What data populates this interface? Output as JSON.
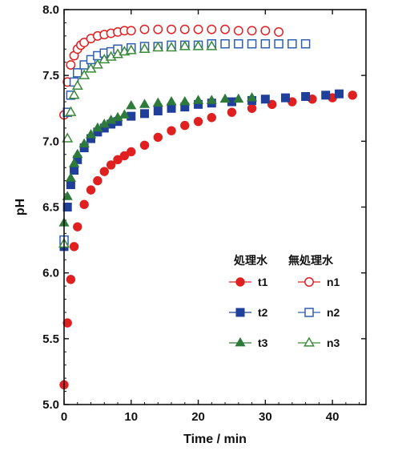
{
  "chart_data": {
    "type": "scatter",
    "title": "",
    "xlabel": "Time / min",
    "ylabel": "pH",
    "xlim": [
      0,
      45
    ],
    "ylim": [
      5.0,
      8.0
    ],
    "x_ticks": [
      "0",
      "10",
      "20",
      "30",
      "40"
    ],
    "y_ticks": [
      "5.0",
      "5.5",
      "6.0",
      "6.5",
      "7.0",
      "7.5",
      "8.0"
    ],
    "grid": false,
    "legend": {
      "placement": "bottom-right",
      "group_headers": [
        "処理水",
        "無処理水"
      ]
    },
    "series": [
      {
        "name": "t1",
        "color": "#e02020",
        "marker": "circle-filled",
        "x": [
          0,
          0.5,
          1,
          1.5,
          2,
          3,
          4,
          5,
          6,
          7,
          8,
          9,
          10,
          12,
          14,
          16,
          18,
          20,
          22,
          25,
          28,
          31,
          34,
          37,
          40,
          43
        ],
        "y": [
          5.15,
          5.62,
          5.95,
          6.2,
          6.35,
          6.52,
          6.63,
          6.7,
          6.77,
          6.82,
          6.86,
          6.89,
          6.92,
          6.97,
          7.03,
          7.08,
          7.12,
          7.15,
          7.18,
          7.22,
          7.25,
          7.28,
          7.3,
          7.32,
          7.33,
          7.35
        ]
      },
      {
        "name": "t2",
        "color": "#1f3f9a",
        "marker": "square-filled",
        "x": [
          0,
          0.5,
          1,
          1.5,
          2,
          3,
          4,
          5,
          6,
          7,
          8,
          10,
          12,
          14,
          16,
          18,
          20,
          22,
          25,
          28,
          30,
          33,
          36,
          39,
          41
        ],
        "y": [
          6.2,
          6.5,
          6.67,
          6.78,
          6.86,
          6.95,
          7.02,
          7.07,
          7.1,
          7.13,
          7.15,
          7.19,
          7.21,
          7.23,
          7.25,
          7.26,
          7.28,
          7.29,
          7.3,
          7.31,
          7.32,
          7.33,
          7.34,
          7.35,
          7.36
        ]
      },
      {
        "name": "t3",
        "color": "#2d7a3a",
        "marker": "triangle-filled",
        "x": [
          0,
          0.5,
          1,
          1.5,
          2,
          3,
          4,
          5,
          6,
          7,
          8,
          9,
          10,
          12,
          14,
          16,
          18,
          20,
          22,
          24,
          26,
          28
        ],
        "y": [
          6.38,
          6.58,
          6.72,
          6.83,
          6.9,
          6.98,
          7.05,
          7.1,
          7.13,
          7.16,
          7.18,
          7.2,
          7.27,
          7.28,
          7.29,
          7.3,
          7.3,
          7.31,
          7.31,
          7.32,
          7.32,
          7.33
        ]
      },
      {
        "name": "n1",
        "color": "#e02020",
        "marker": "circle-open",
        "x": [
          0,
          0.5,
          1,
          1.5,
          2,
          2.5,
          3,
          4,
          5,
          6,
          7,
          8,
          9,
          10,
          12,
          14,
          16,
          18,
          20,
          22,
          24,
          26,
          28,
          30,
          32
        ],
        "y": [
          7.2,
          7.45,
          7.58,
          7.65,
          7.7,
          7.73,
          7.75,
          7.78,
          7.8,
          7.81,
          7.82,
          7.83,
          7.84,
          7.84,
          7.85,
          7.85,
          7.85,
          7.85,
          7.85,
          7.85,
          7.85,
          7.84,
          7.84,
          7.84,
          7.83
        ]
      },
      {
        "name": "n2",
        "color": "#2e5fb0",
        "marker": "square-open",
        "x": [
          0,
          0.5,
          1,
          1.5,
          2,
          3,
          4,
          5,
          6,
          7,
          8,
          10,
          12,
          14,
          16,
          18,
          20,
          22,
          24,
          26,
          28,
          30,
          32,
          34,
          36
        ],
        "y": [
          6.25,
          7.22,
          7.35,
          7.45,
          7.52,
          7.58,
          7.62,
          7.65,
          7.67,
          7.68,
          7.7,
          7.71,
          7.72,
          7.72,
          7.73,
          7.73,
          7.73,
          7.74,
          7.74,
          7.74,
          7.74,
          7.74,
          7.74,
          7.74,
          7.74
        ]
      },
      {
        "name": "n3",
        "color": "#3a8a3a",
        "marker": "triangle-open",
        "x": [
          0,
          0.5,
          1,
          1.5,
          2,
          3,
          4,
          5,
          6,
          7,
          8,
          9,
          10,
          12,
          14,
          16,
          18,
          20,
          22
        ],
        "y": [
          6.22,
          7.02,
          7.22,
          7.35,
          7.42,
          7.5,
          7.55,
          7.58,
          7.62,
          7.64,
          7.66,
          7.68,
          7.69,
          7.7,
          7.71,
          7.71,
          7.72,
          7.72,
          7.72
        ]
      }
    ]
  }
}
